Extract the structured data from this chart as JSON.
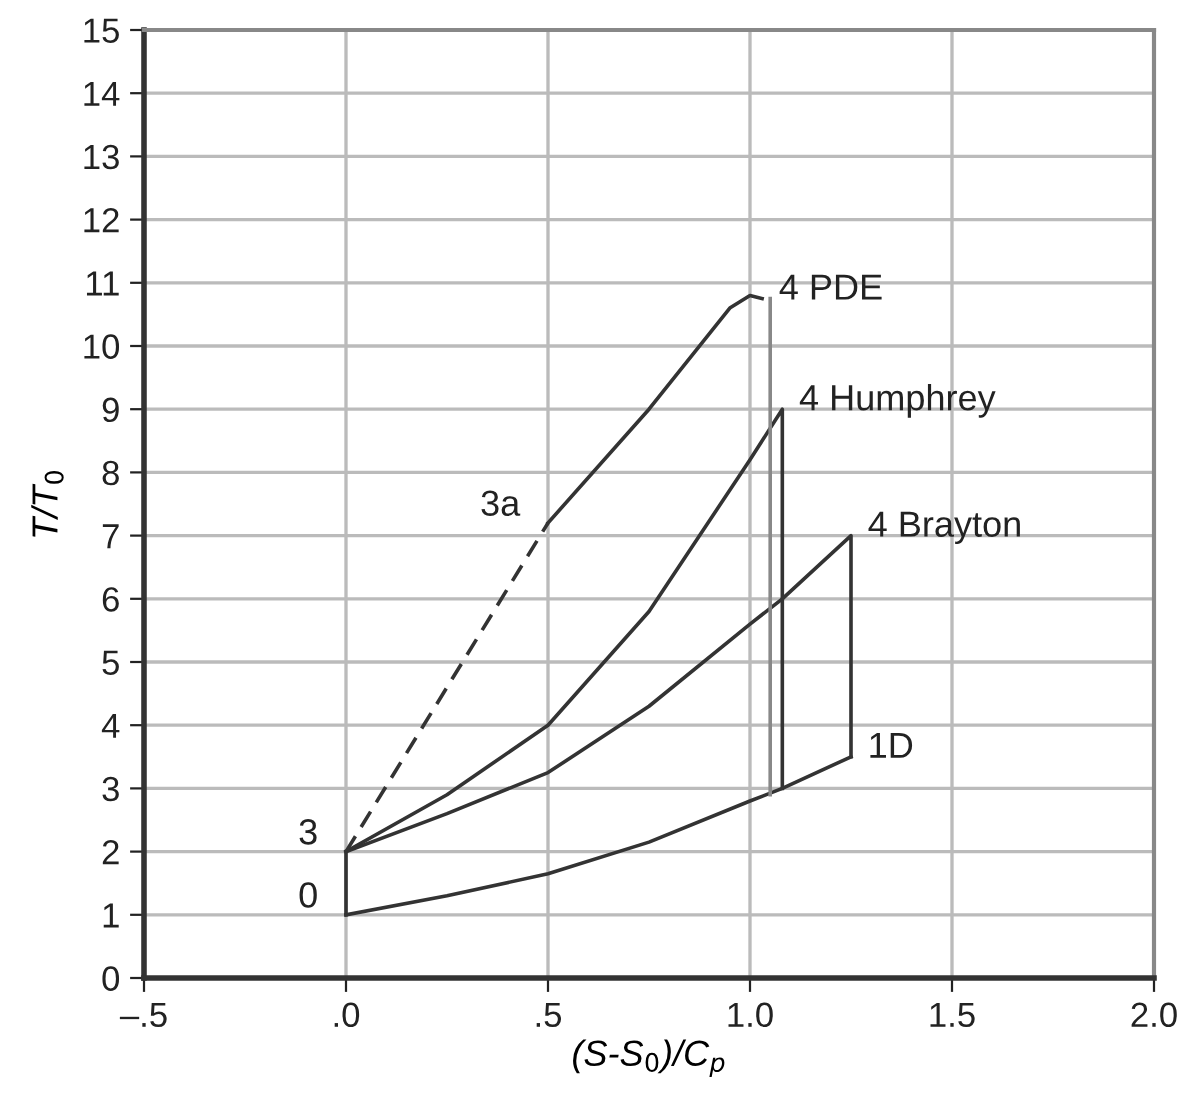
{
  "chart_data": {
    "type": "line",
    "xlabel": "(S-S$_{0}$)/C$_{p}$",
    "ylabel": "T/T$_{0}$",
    "xlim": [
      -0.5,
      2.0
    ],
    "ylim": [
      0,
      15
    ],
    "xticks": [
      {
        "value": -0.5,
        "label": "–.5"
      },
      {
        "value": 0,
        "label": ".0"
      },
      {
        "value": 0.5,
        "label": ".5"
      },
      {
        "value": 1.0,
        "label": "1.0"
      },
      {
        "value": 1.5,
        "label": "1.5"
      },
      {
        "value": 2.0,
        "label": "2.0"
      }
    ],
    "yticks": [
      0,
      1,
      2,
      3,
      4,
      5,
      6,
      7,
      8,
      9,
      10,
      11,
      12,
      13,
      14,
      15
    ],
    "grid": true,
    "marker": "none",
    "series": [
      {
        "color": "#333333",
        "line_style": "solid",
        "x": [
          0,
          0.25,
          0.5,
          0.75,
          1.0,
          1.08,
          1.25
        ],
        "values": [
          1,
          1.3,
          1.65,
          2.15,
          2.8,
          3.0,
          3.5
        ]
      },
      {
        "color": "#333333",
        "line_style": "solid",
        "x": [
          0,
          0
        ],
        "values": [
          1,
          2
        ]
      },
      {
        "color": "#333333",
        "line_style": "solid",
        "x": [
          0,
          0.25,
          0.5,
          0.75,
          1.0,
          1.08,
          1.25,
          1.25
        ],
        "values": [
          2,
          2.6,
          3.25,
          4.3,
          5.6,
          6.0,
          7,
          3.5
        ]
      },
      {
        "color": "#333333",
        "line_style": "solid",
        "x": [
          0,
          0.25,
          0.5,
          0.75,
          1.0,
          1.08,
          1.08
        ],
        "values": [
          2,
          2.9,
          4.0,
          5.8,
          8.2,
          9.0,
          3.0
        ]
      },
      {
        "color": "#333333",
        "line_style": "dashed",
        "x": [
          0,
          0.5
        ],
        "values": [
          2,
          7.2
        ]
      },
      {
        "color": "#333333",
        "line_style": "solid",
        "x": [
          0.5,
          0.75,
          0.95,
          1.0,
          1.03
        ],
        "values": [
          7.2,
          9.0,
          10.6,
          10.8,
          10.75
        ]
      },
      {
        "color": "#888888",
        "line_style": "solid",
        "x": [
          1.05,
          1.05
        ],
        "values": [
          10.75,
          2.9
        ]
      }
    ],
    "annotations": [
      {
        "text": "0",
        "x": 0,
        "y": 1
      },
      {
        "text": "3",
        "x": 0,
        "y": 2
      },
      {
        "text": "3a",
        "x": 0.5,
        "y": 7.2
      },
      {
        "text": "4 PDE",
        "x": 1.03,
        "y": 10.75
      },
      {
        "text": "4 Humphrey",
        "x": 1.08,
        "y": 9
      },
      {
        "text": "4 Brayton",
        "x": 1.25,
        "y": 7
      },
      {
        "text": "1D",
        "x": 1.25,
        "y": 3.5
      }
    ]
  }
}
